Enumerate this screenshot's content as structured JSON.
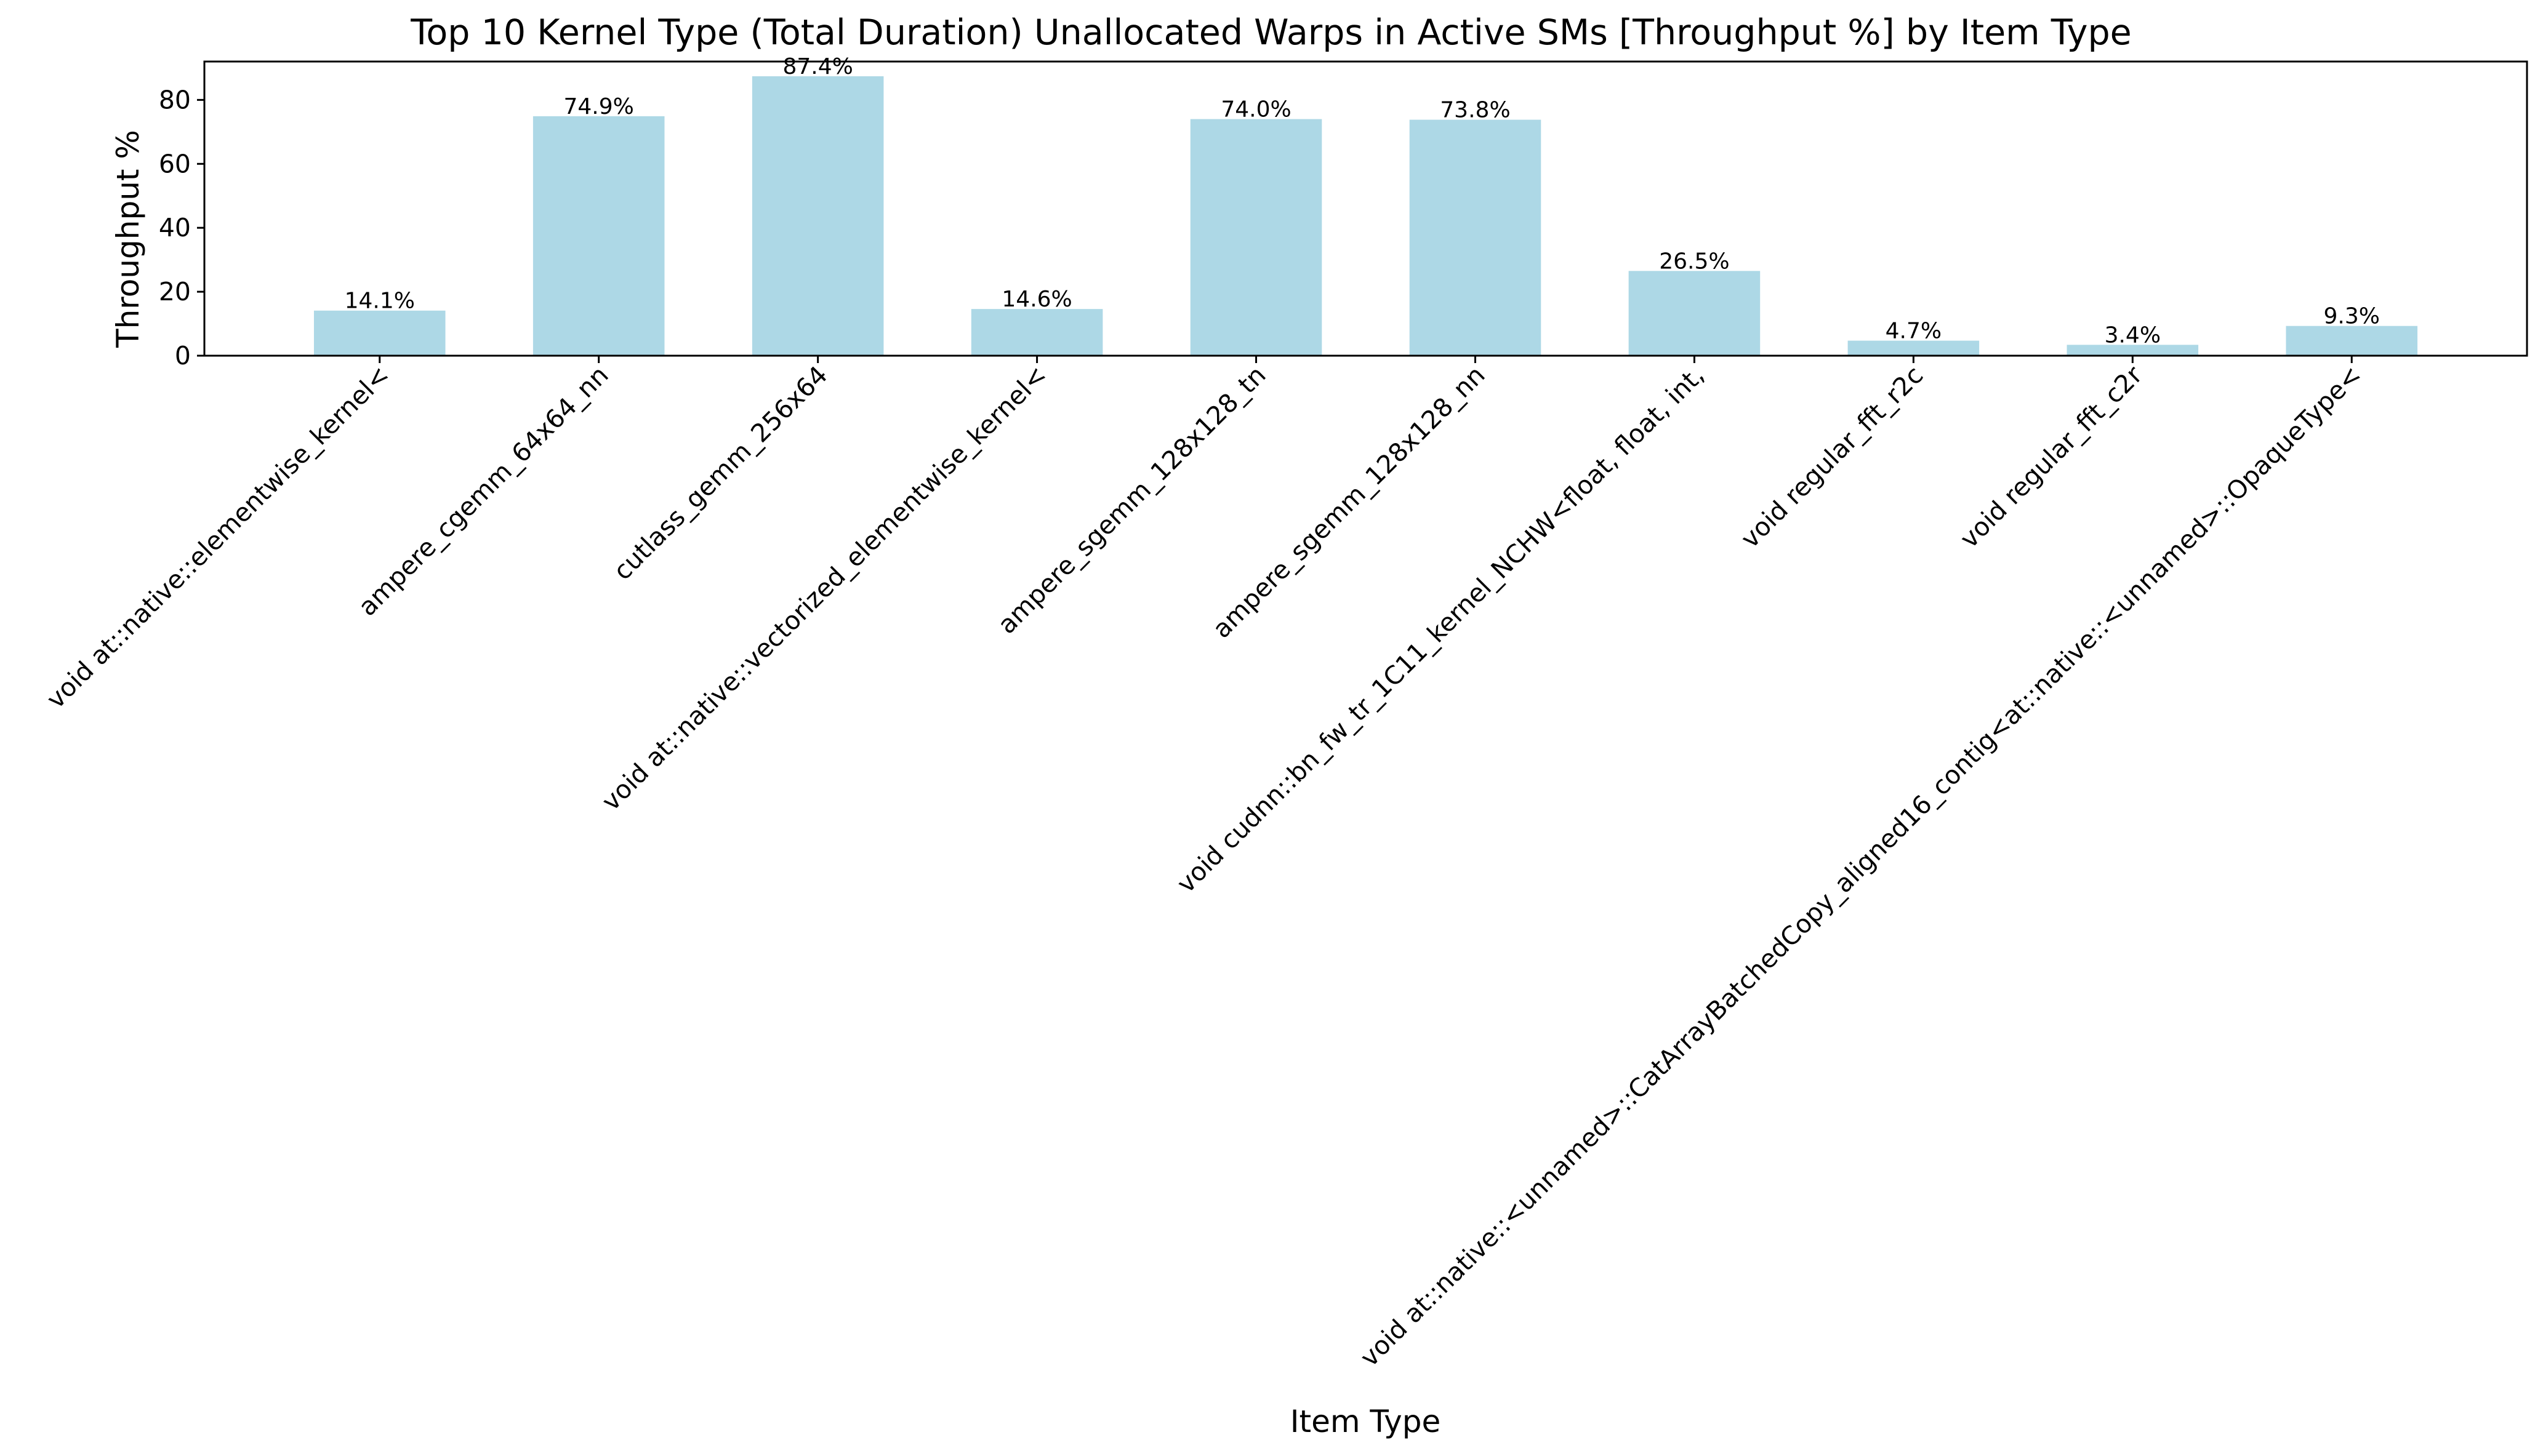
{
  "chart_data": {
    "type": "bar",
    "title": "Top 10 Kernel Type (Total Duration) Unallocated Warps in Active SMs [Throughput %] by Item Type",
    "xlabel": "Item Type",
    "ylabel": "Throughput %",
    "categories": [
      "void at::native::elementwise_kernel<",
      "ampere_cgemm_64x64_nn",
      "cutlass_gemm_256x64",
      "void at::native::vectorized_elementwise_kernel<",
      "ampere_sgemm_128x128_tn",
      "ampere_sgemm_128x128_nn",
      "void cudnn::bn_fw_tr_1C11_kernel_NCHW<float, float, int,",
      "void regular_fft_r2c",
      "void regular_fft_c2r",
      "void at::native::<unnamed>::CatArrayBatchedCopy_aligned16_contig<at::native::<unnamed>::OpaqueType<"
    ],
    "values": [
      14.1,
      74.9,
      87.4,
      14.6,
      74.0,
      73.8,
      26.5,
      4.7,
      3.4,
      9.3
    ],
    "data_labels": [
      "14.1%",
      "74.9%",
      "87.4%",
      "14.6%",
      "74.0%",
      "73.8%",
      "26.5%",
      "4.7%",
      "3.4%",
      "9.3%"
    ],
    "ylim": [
      0,
      92
    ],
    "yticks": [
      0,
      20,
      40,
      60,
      80
    ],
    "bar_color": "#add8e6",
    "grid": false,
    "legend": "none"
  }
}
